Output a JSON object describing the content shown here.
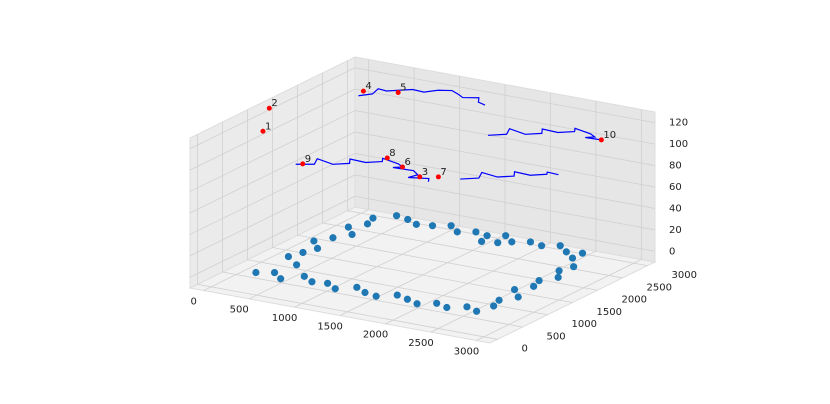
{
  "chart_data": {
    "type": "scatter3d",
    "xlim": [
      -150,
      3150
    ],
    "ylim": [
      -150,
      3150
    ],
    "zlim": [
      -10,
      130
    ],
    "xticks": [
      0,
      500,
      1000,
      1500,
      2000,
      2500,
      3000
    ],
    "yticks": [
      0,
      500,
      1000,
      1500,
      2000,
      2500,
      3000
    ],
    "zticks": [
      0,
      20,
      40,
      60,
      80,
      100,
      120
    ],
    "grid": true,
    "scatter": {
      "color": "#1f77b4",
      "x": [
        300,
        450,
        600,
        750,
        900,
        1050,
        1200,
        1350,
        1500,
        1650,
        1800,
        1950,
        2100,
        2250,
        2400,
        2550,
        2700,
        2750,
        2700,
        2800,
        2650,
        2750,
        2700,
        2800,
        2700,
        2750,
        2600,
        2450,
        2300,
        2150,
        2000,
        1850,
        1700,
        1550,
        1400,
        1250,
        1100,
        950,
        800,
        650,
        500,
        350,
        400,
        300,
        450,
        350,
        250,
        400,
        350,
        300,
        500,
        1600,
        1750,
        2600
      ],
      "y": [
        350,
        450,
        300,
        500,
        380,
        420,
        300,
        460,
        350,
        300,
        450,
        380,
        300,
        420,
        350,
        480,
        400,
        650,
        850,
        1050,
        1250,
        1450,
        1650,
        1850,
        2050,
        2250,
        2700,
        2650,
        2800,
        2700,
        2750,
        2650,
        2800,
        2700,
        2750,
        2650,
        2800,
        2700,
        2650,
        2750,
        2800,
        2600,
        2400,
        2200,
        2000,
        1800,
        1600,
        1400,
        1200,
        1000,
        800,
        2500,
        2550,
        2500
      ],
      "z": [
        0,
        0,
        0,
        0,
        0,
        0,
        0,
        0,
        0,
        0,
        0,
        0,
        0,
        0,
        0,
        0,
        0,
        0,
        0,
        0,
        0,
        0,
        0,
        0,
        0,
        0,
        0,
        0,
        0,
        0,
        0,
        0,
        0,
        0,
        0,
        0,
        0,
        0,
        0,
        0,
        0,
        0,
        0,
        0,
        0,
        0,
        0,
        0,
        0,
        0,
        0,
        0,
        0,
        0
      ]
    },
    "lines": [
      {
        "color": "#0000ff",
        "x": [
          600,
          750,
          700,
          900,
          1000,
          950,
          1150,
          1250,
          1200,
          1400,
          1500,
          1450,
          1650,
          1750,
          1700,
          1900,
          1950
        ],
        "y": [
          600,
          700,
          850,
          800,
          950,
          1050,
          1000,
          1150,
          1250,
          1200,
          1100,
          1000,
          1050,
          950,
          850,
          900,
          800
        ],
        "z": [
          100,
          100,
          101,
          100,
          99,
          100,
          101,
          100,
          100,
          99,
          100,
          101,
          100,
          100,
          99,
          100,
          100
        ]
      },
      {
        "color": "#0000ff",
        "x": [
          2000,
          2150,
          2100,
          2300,
          2400,
          2350,
          2550,
          2650,
          2600,
          2800,
          2900,
          2850,
          3000
        ],
        "y": [
          1900,
          2000,
          2150,
          2100,
          2250,
          2350,
          2300,
          2450,
          2550,
          2500,
          2400,
          2300,
          2350
        ],
        "z": [
          119,
          120,
          121,
          120,
          119,
          120,
          121,
          120,
          120,
          119,
          120,
          121,
          120
        ]
      },
      {
        "color": "#0000ff",
        "x": [
          300,
          400,
          380,
          500,
          600,
          650,
          800,
          900,
          1000,
          1100,
          1200,
          1350,
          1400,
          1500
        ],
        "y": [
          2400,
          2500,
          2650,
          2600,
          2750,
          2850,
          2800,
          2900,
          3000,
          2950,
          2850,
          2900,
          2800,
          2750
        ],
        "z": [
          118,
          119,
          120,
          121,
          120,
          119,
          120,
          121,
          120,
          119,
          120,
          121,
          120,
          120
        ]
      },
      {
        "color": "#0000ff",
        "x": [
          2300,
          2450,
          2400,
          2600,
          2700,
          2650,
          2850,
          2950,
          2900,
          3050
        ],
        "y": [
          800,
          900,
          1050,
          1000,
          1150,
          1250,
          1200,
          1350,
          1450,
          1400
        ],
        "z": [
          108,
          109,
          110,
          110,
          109,
          110,
          111,
          110,
          109,
          110
        ]
      }
    ],
    "points": {
      "color": "#ff0000",
      "labels": [
        "1",
        "2",
        "3",
        "4",
        "5",
        "6",
        "7",
        "8",
        "9",
        "10"
      ],
      "x": [
        -200,
        -350,
        1800,
        300,
        600,
        1500,
        1950,
        1250,
        650,
        3000
      ],
      "y": [
        1400,
        1800,
        900,
        2500,
        2650,
        1100,
        1000,
        1250,
        650,
        2350
      ],
      "z": [
        100,
        110,
        100,
        120,
        120,
        100,
        100,
        101,
        100,
        120
      ]
    }
  }
}
